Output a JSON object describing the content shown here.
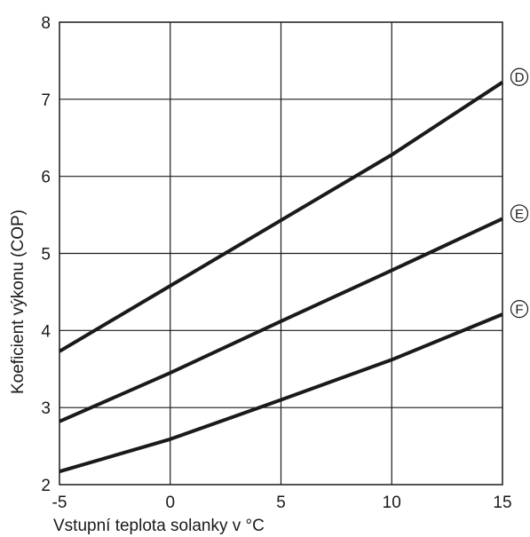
{
  "chart_data": {
    "type": "line",
    "xlabel": "Vstupní teplota solanky v °C",
    "ylabel": "Koeficient výkonu (COP)",
    "xlim": [
      -5,
      15
    ],
    "ylim": [
      2,
      8
    ],
    "xticks": [
      -5,
      0,
      5,
      10,
      15
    ],
    "yticks": [
      2,
      3,
      4,
      5,
      6,
      7,
      8
    ],
    "grid": true,
    "series": [
      {
        "name": "D",
        "x": [
          -5,
          0,
          5,
          10,
          15
        ],
        "y": [
          3.73,
          4.58,
          5.43,
          6.28,
          7.22
        ]
      },
      {
        "name": "E",
        "x": [
          -5,
          0,
          5,
          10,
          15
        ],
        "y": [
          2.82,
          3.45,
          4.12,
          4.78,
          5.45
        ]
      },
      {
        "name": "F",
        "x": [
          -5,
          0,
          5,
          10,
          15
        ],
        "y": [
          2.17,
          2.59,
          3.1,
          3.62,
          4.21
        ]
      }
    ],
    "colors": {
      "line": "#1a1a1a",
      "grid": "#1a1a1a",
      "background": "#ffffff"
    }
  }
}
